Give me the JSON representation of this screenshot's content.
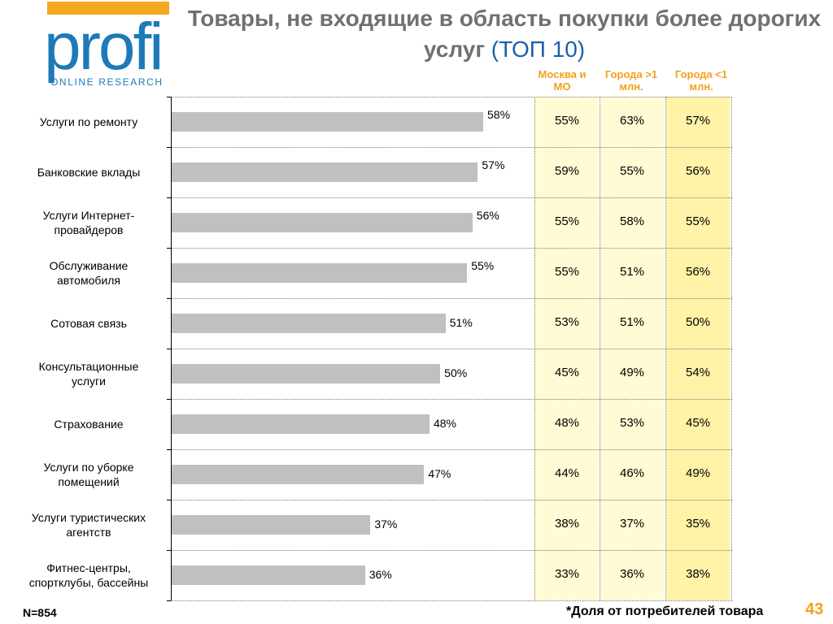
{
  "logo": {
    "word": "profi",
    "subtitle": "ONLINE RESEARCH"
  },
  "title_main": "Товары, не входящие в область покупки более дорогих услуг",
  "title_accent": "(ТОП 10)",
  "columns": [
    "Москва и МО",
    "Города >1 млн.",
    "Города <1 млн."
  ],
  "colors": {
    "bar": "#c0c0c0",
    "header": "#f3a01a",
    "title": "#707070",
    "accent": "#1d5fa8"
  },
  "footer": {
    "n": "N=854",
    "note": "*Доля  от потребителей товара",
    "page": "43"
  },
  "chart_data": {
    "type": "bar",
    "orientation": "horizontal",
    "xlim": [
      0,
      100
    ],
    "categories": [
      [
        "Услуги по ремонту"
      ],
      [
        "Банковские вклады"
      ],
      [
        "Услуги Интернет-",
        "провайдеров"
      ],
      [
        "Обслуживание",
        "автомобиля"
      ],
      [
        "Сотовая связь"
      ],
      [
        "Консультационные",
        "услуги"
      ],
      [
        "Страхование"
      ],
      [
        "Услуги по уборке",
        "помещений"
      ],
      [
        "Услуги туристических",
        "агентств"
      ],
      [
        "Фитнес-центры,",
        "спортклубы, бассейны"
      ]
    ],
    "values": [
      58,
      57,
      56,
      55,
      51,
      50,
      48,
      47,
      37,
      36
    ],
    "value_labels": [
      "58%",
      "57%",
      "56%",
      "55%",
      "51%",
      "50%",
      "48%",
      "47%",
      "37%",
      "36%"
    ],
    "table": [
      [
        "55%",
        "63%",
        "57%"
      ],
      [
        "59%",
        "55%",
        "56%"
      ],
      [
        "55%",
        "58%",
        "55%"
      ],
      [
        "55%",
        "51%",
        "56%"
      ],
      [
        "53%",
        "51%",
        "50%"
      ],
      [
        "45%",
        "49%",
        "54%"
      ],
      [
        "48%",
        "53%",
        "45%"
      ],
      [
        "44%",
        "46%",
        "49%"
      ],
      [
        "38%",
        "37%",
        "35%"
      ],
      [
        "33%",
        "36%",
        "38%"
      ]
    ]
  }
}
